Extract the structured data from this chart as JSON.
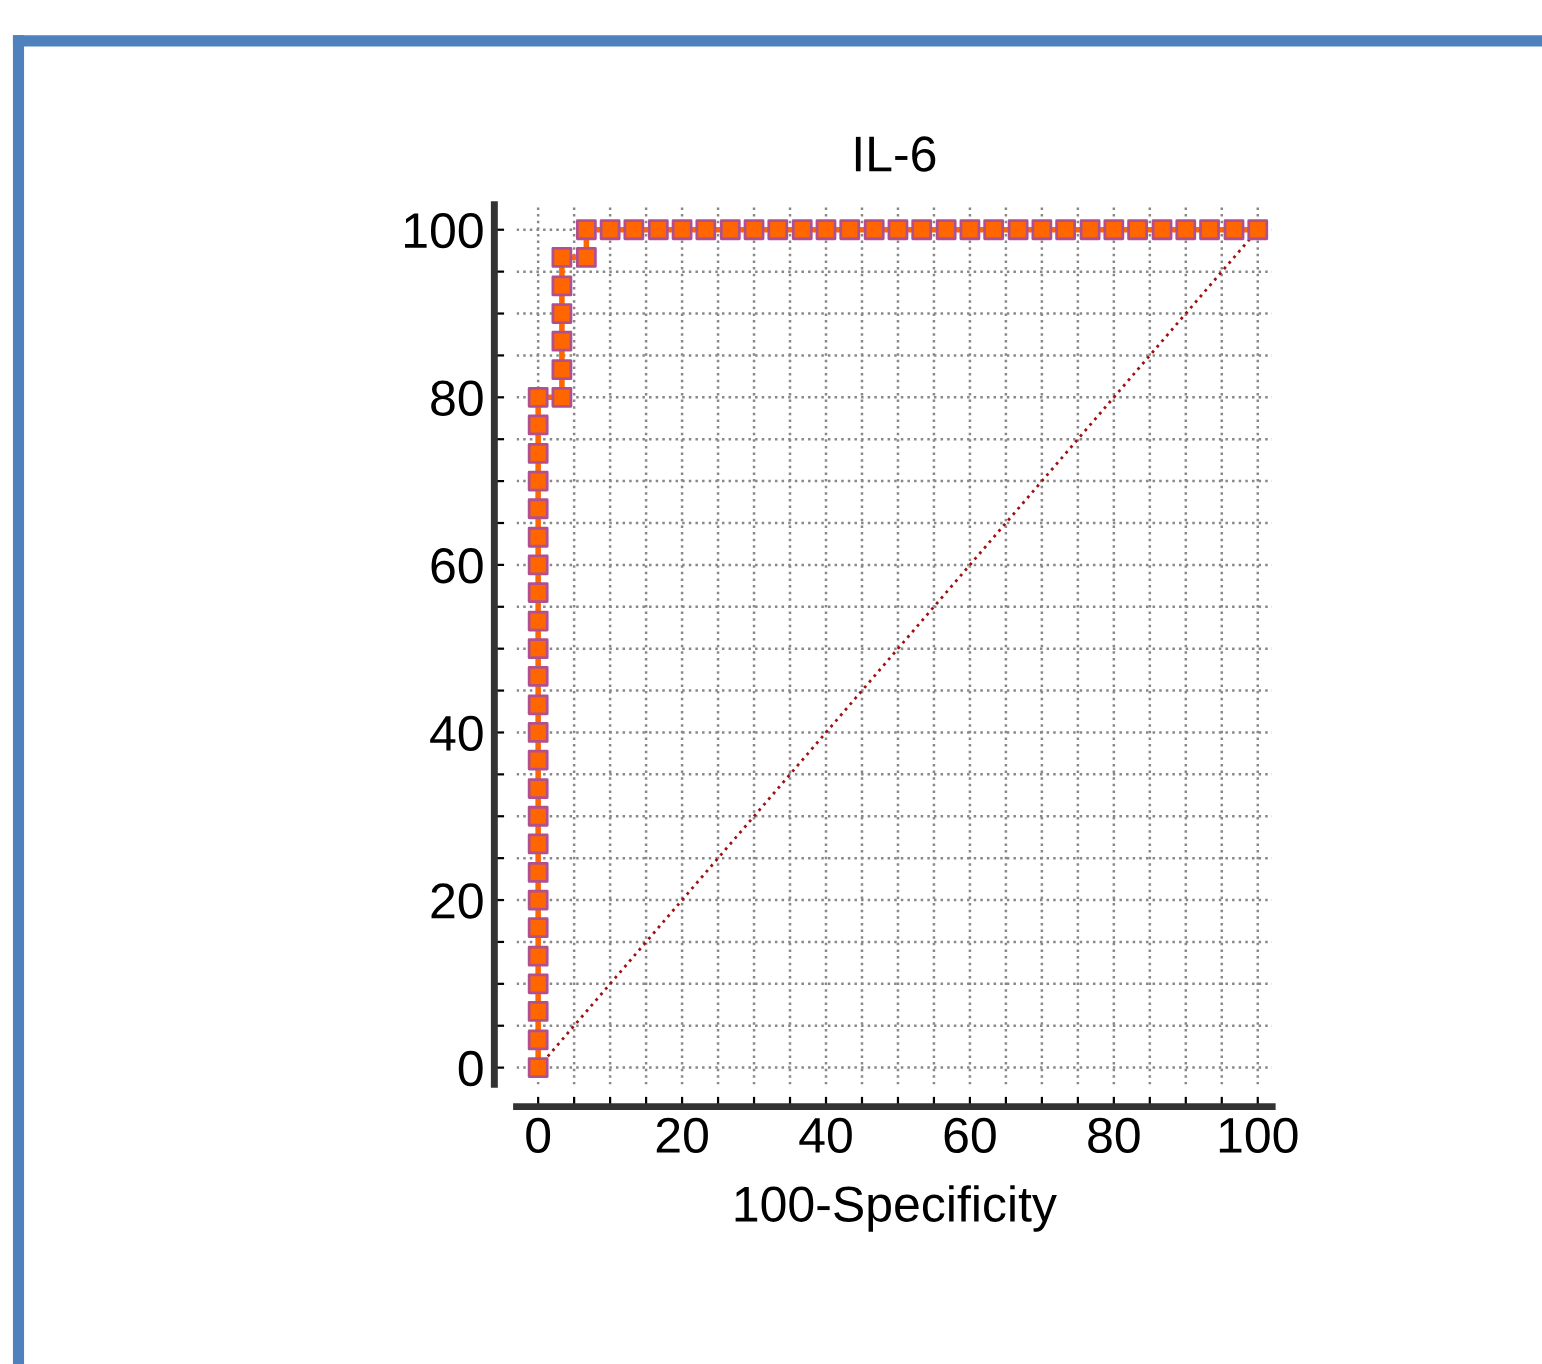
{
  "chart_data": {
    "type": "line",
    "title": "IL-6",
    "xlabel": "100-Specificity",
    "series": [
      {
        "color": "#ff6600",
        "marker": "square",
        "line_style": "solid",
        "x": [
          0,
          0,
          0,
          0,
          0,
          0,
          0,
          0,
          0,
          0,
          0,
          0,
          0,
          0,
          0,
          0,
          0,
          0,
          0,
          0,
          0,
          0,
          0,
          0,
          0,
          3.3,
          3.3,
          3.3,
          3.3,
          3.3,
          3.3,
          6.7,
          6.7,
          10,
          13.3,
          16.7,
          20,
          23.3,
          26.7,
          30,
          33.3,
          36.7,
          40,
          43.3,
          46.7,
          50,
          53.3,
          56.7,
          60,
          63.3,
          66.7,
          70,
          73.3,
          76.7,
          80,
          83.3,
          86.7,
          90,
          93.3,
          96.7,
          100
        ],
        "values": [
          0,
          3.3,
          6.7,
          10,
          13.3,
          16.7,
          20,
          23.3,
          26.7,
          30,
          33.3,
          36.7,
          40,
          43.3,
          46.7,
          50,
          53.3,
          56.7,
          60,
          63.3,
          66.7,
          70,
          73.3,
          76.7,
          80,
          80,
          83.3,
          86.7,
          90,
          93.3,
          96.7,
          96.7,
          100,
          100,
          100,
          100,
          100,
          100,
          100,
          100,
          100,
          100,
          100,
          100,
          100,
          100,
          100,
          100,
          100,
          100,
          100,
          100,
          100,
          100,
          100,
          100,
          100,
          100,
          100,
          100,
          100
        ]
      },
      {
        "color": "#a01010",
        "line_style": "dotted",
        "x": [
          0,
          100
        ],
        "values": [
          0,
          100
        ]
      }
    ],
    "xlim": [
      -3,
      102
    ],
    "ylim": [
      -2,
      103
    ],
    "xticks": [
      0,
      {
        "value": 5,
        "label": null
      },
      {
        "value": 10,
        "label": null
      },
      {
        "value": 15,
        "label": null
      },
      20,
      {
        "value": 25,
        "label": null
      },
      {
        "value": 30,
        "label": null
      },
      {
        "value": 35,
        "label": null
      },
      40,
      {
        "value": 45,
        "label": null
      },
      {
        "value": 50,
        "label": null
      },
      {
        "value": 55,
        "label": null
      },
      60,
      {
        "value": 65,
        "label": null
      },
      {
        "value": 70,
        "label": null
      },
      {
        "value": 75,
        "label": null
      },
      80,
      {
        "value": 85,
        "label": null
      },
      {
        "value": 90,
        "label": null
      },
      {
        "value": 95,
        "label": null
      },
      100
    ],
    "yticks": [
      0,
      {
        "value": 5,
        "label": null
      },
      {
        "value": 10,
        "label": null
      },
      {
        "value": 15,
        "label": null
      },
      20,
      {
        "value": 25,
        "label": null
      },
      {
        "value": 30,
        "label": null
      },
      {
        "value": 35,
        "label": null
      },
      40,
      {
        "value": 45,
        "label": null
      },
      {
        "value": 50,
        "label": null
      },
      {
        "value": 55,
        "label": null
      },
      60,
      {
        "value": 65,
        "label": null
      },
      {
        "value": 70,
        "label": null
      },
      {
        "value": 75,
        "label": null
      },
      80,
      {
        "value": 85,
        "label": null
      },
      {
        "value": 90,
        "label": null
      },
      {
        "value": 95,
        "label": null
      },
      100
    ],
    "grid": true,
    "legend": false
  }
}
